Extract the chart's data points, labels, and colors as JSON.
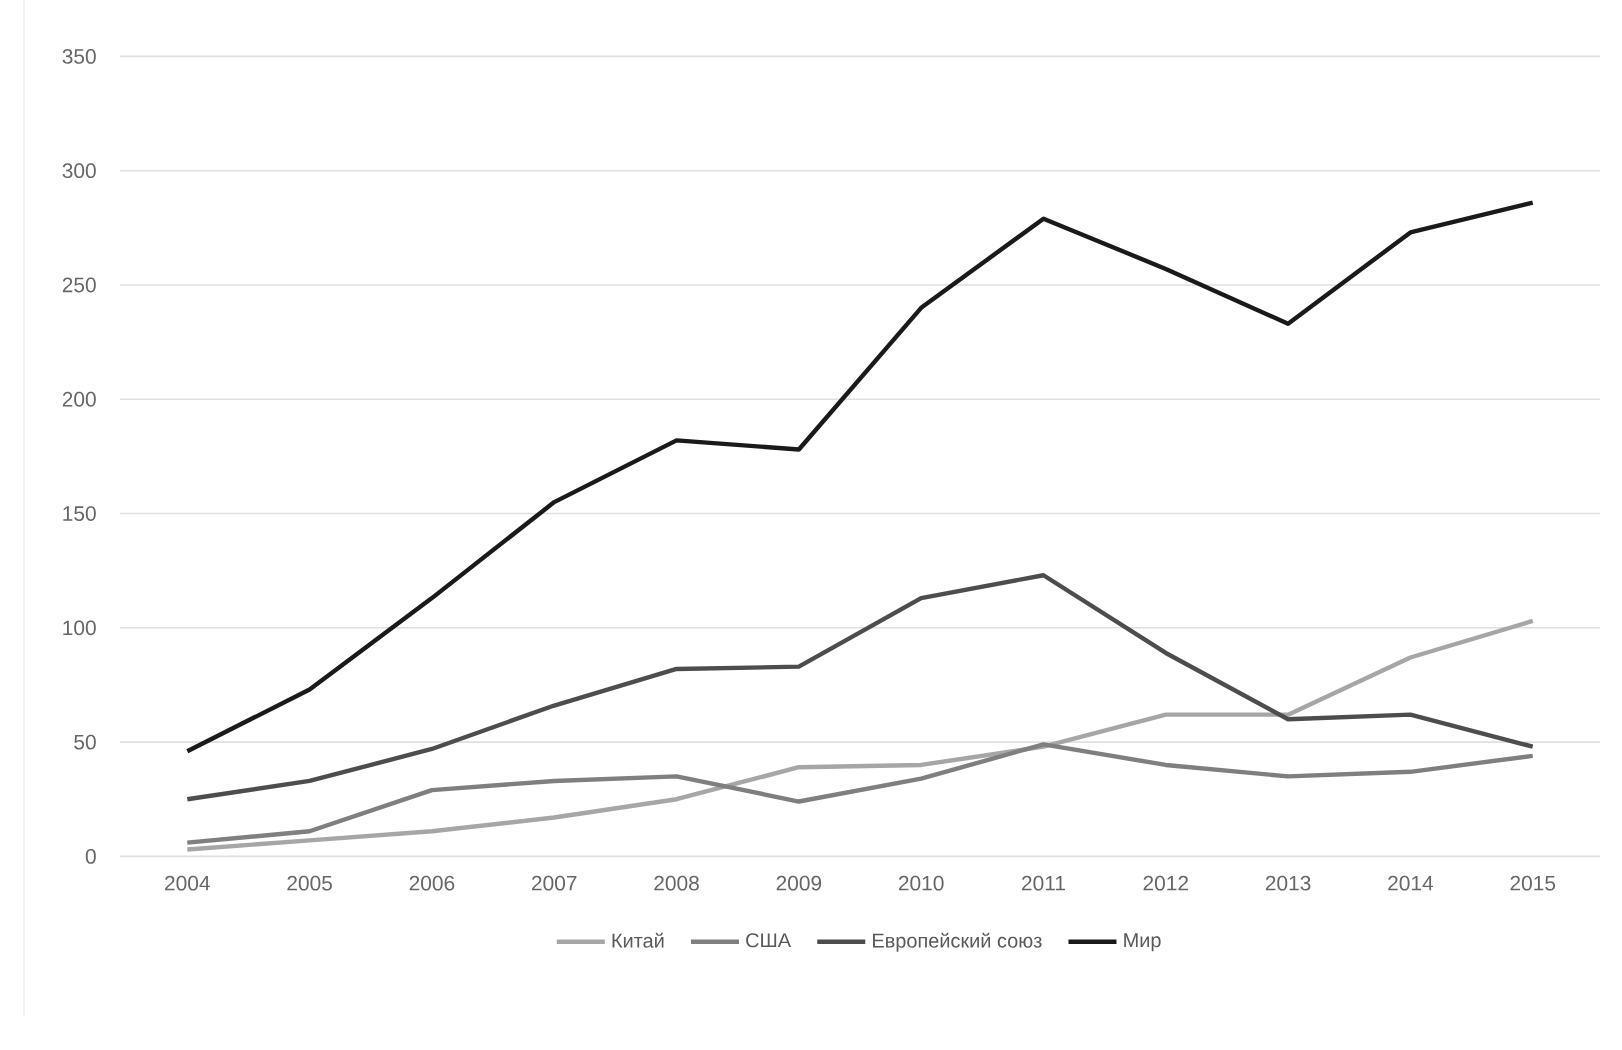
{
  "chart_data": {
    "type": "line",
    "categories": [
      "2004",
      "2005",
      "2006",
      "2007",
      "2008",
      "2009",
      "2010",
      "2011",
      "2012",
      "2013",
      "2014",
      "2015"
    ],
    "series": [
      {
        "name": "Китай",
        "color": "#a6a6a6",
        "values": [
          3,
          7,
          11,
          17,
          25,
          39,
          40,
          48,
          62,
          62,
          87,
          103
        ]
      },
      {
        "name": "США",
        "color": "#7f7f7f",
        "values": [
          6,
          11,
          29,
          33,
          35,
          24,
          34,
          49,
          40,
          35,
          37,
          44
        ]
      },
      {
        "name": "Европейский союз",
        "color": "#4d4d4d",
        "values": [
          25,
          33,
          47,
          66,
          82,
          83,
          113,
          123,
          89,
          60,
          62,
          48
        ]
      },
      {
        "name": "Мир",
        "color": "#1a1a1a",
        "values": [
          46,
          73,
          113,
          155,
          182,
          178,
          240,
          279,
          257,
          233,
          273,
          286
        ]
      }
    ],
    "ylim": [
      0,
      350
    ],
    "yticks": [
      0,
      50,
      100,
      150,
      200,
      250,
      300,
      350
    ],
    "grid": "y",
    "legend": "bottom",
    "marker": "none",
    "line_style": "solid"
  }
}
